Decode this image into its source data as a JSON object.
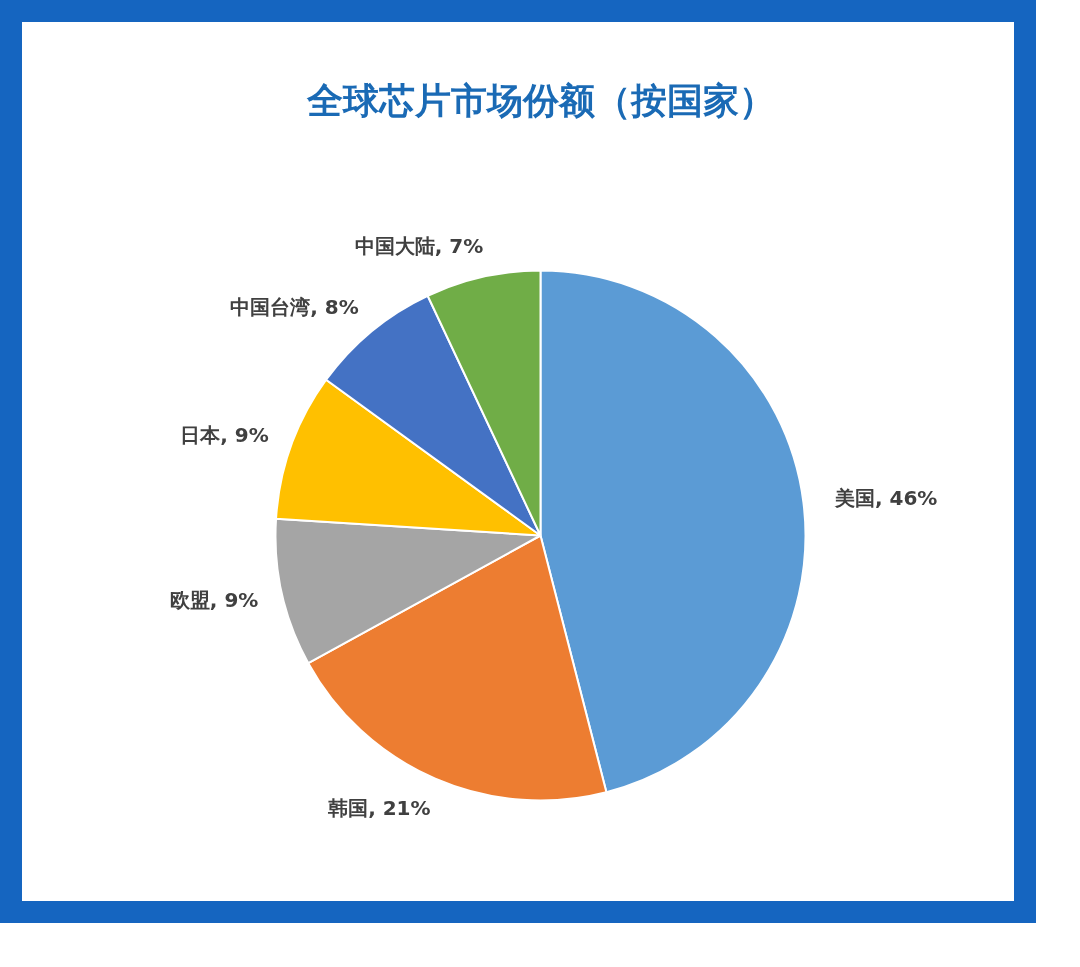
{
  "chart_data": {
    "type": "pie",
    "title": "全球芯片市场份额（按国家）",
    "categories": [
      "美国",
      "韩国",
      "欧盟",
      "日本",
      "中国台湾",
      "中国大陆"
    ],
    "values": [
      46,
      21,
      9,
      9,
      8,
      7
    ],
    "colors": [
      "#5b9bd5",
      "#ed7d31",
      "#a5a5a5",
      "#ffc000",
      "#4472c4",
      "#70ad47"
    ],
    "value_labels": [
      ", 46%",
      ", 21%",
      ", 9%",
      ", 9%",
      ", 8%",
      ", 7%"
    ]
  }
}
